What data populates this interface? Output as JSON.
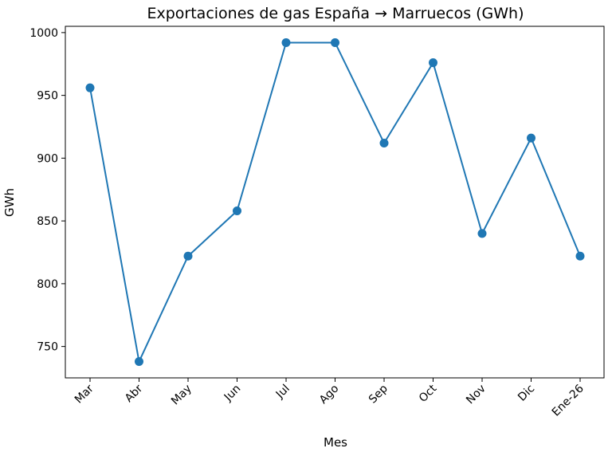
{
  "chart_data": {
    "type": "line",
    "title": "Exportaciones de gas España → Marruecos (GWh)",
    "xlabel": "Mes",
    "ylabel": "GWh",
    "categories": [
      "Mar",
      "Abr",
      "May",
      "Jun",
      "Jul",
      "Ago",
      "Sep",
      "Oct",
      "Nov",
      "Dic",
      "Ene-26"
    ],
    "series": [
      {
        "values": [
          956,
          738,
          822,
          858,
          992,
          992,
          912,
          976,
          840,
          916,
          822
        ],
        "color": "#1f77b4"
      }
    ],
    "ylim": [
      725,
      1005
    ],
    "yticks": [
      750,
      800,
      850,
      900,
      950,
      1000
    ],
    "grid": false,
    "marker": "circle"
  }
}
